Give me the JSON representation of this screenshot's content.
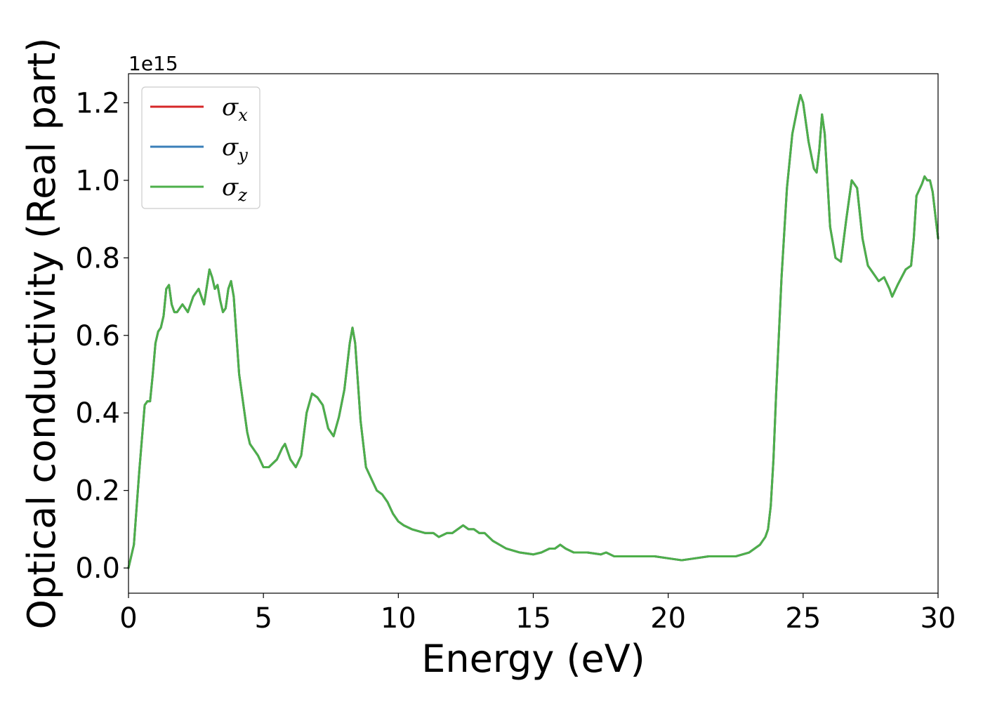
{
  "chart_data": {
    "type": "line",
    "title": "",
    "xlabel": "Energy (eV)",
    "ylabel": "Optical conductivity (Real part)",
    "y_offset_label": "1e15",
    "xlim": [
      0,
      30
    ],
    "ylim": [
      -0.065,
      1.275
    ],
    "x_ticks": [
      0,
      5,
      10,
      15,
      20,
      25,
      30
    ],
    "x_tick_labels": [
      "0",
      "5",
      "10",
      "15",
      "20",
      "25",
      "30"
    ],
    "y_ticks": [
      0.0,
      0.2,
      0.4,
      0.6,
      0.8,
      1.0,
      1.2
    ],
    "y_tick_labels": [
      "0.0",
      "0.2",
      "0.4",
      "0.6",
      "0.8",
      "1.0",
      "1.2"
    ],
    "grid": false,
    "legend_position": "top-left",
    "x": [
      0,
      0.2,
      0.4,
      0.6,
      0.7,
      0.8,
      0.9,
      1.0,
      1.1,
      1.2,
      1.3,
      1.4,
      1.5,
      1.6,
      1.7,
      1.8,
      2.0,
      2.2,
      2.4,
      2.6,
      2.8,
      3.0,
      3.1,
      3.2,
      3.3,
      3.4,
      3.5,
      3.6,
      3.7,
      3.8,
      3.9,
      4.0,
      4.1,
      4.2,
      4.3,
      4.4,
      4.5,
      4.6,
      4.7,
      4.8,
      5.0,
      5.2,
      5.5,
      5.7,
      5.8,
      6.0,
      6.2,
      6.4,
      6.6,
      6.8,
      7.0,
      7.2,
      7.4,
      7.6,
      7.8,
      8.0,
      8.2,
      8.3,
      8.4,
      8.5,
      8.6,
      8.8,
      9.0,
      9.2,
      9.4,
      9.6,
      9.8,
      10.0,
      10.2,
      10.5,
      11.0,
      11.3,
      11.5,
      11.8,
      12.0,
      12.2,
      12.4,
      12.6,
      12.8,
      13.0,
      13.2,
      13.5,
      14.0,
      14.5,
      15.0,
      15.3,
      15.6,
      15.8,
      16.0,
      16.2,
      16.5,
      17.0,
      17.5,
      17.7,
      18.0,
      18.5,
      19.0,
      19.5,
      20.0,
      20.5,
      21.0,
      21.5,
      22.0,
      22.5,
      23.0,
      23.2,
      23.4,
      23.5,
      23.6,
      23.7,
      23.8,
      23.9,
      24.0,
      24.2,
      24.4,
      24.6,
      24.8,
      24.9,
      25.0,
      25.2,
      25.4,
      25.5,
      25.6,
      25.7,
      25.8,
      25.9,
      26.0,
      26.2,
      26.4,
      26.6,
      26.8,
      27.0,
      27.2,
      27.4,
      27.6,
      27.8,
      28.0,
      28.2,
      28.3,
      28.5,
      28.8,
      29.0,
      29.1,
      29.2,
      29.4,
      29.5,
      29.6,
      29.7,
      29.8,
      30.0
    ],
    "series": [
      {
        "name": "σ",
        "sub": "x",
        "color": "#d62728",
        "values": [
          0.0,
          0.06,
          0.25,
          0.42,
          0.43,
          0.43,
          0.5,
          0.58,
          0.61,
          0.62,
          0.65,
          0.72,
          0.73,
          0.68,
          0.66,
          0.66,
          0.68,
          0.66,
          0.7,
          0.72,
          0.68,
          0.77,
          0.75,
          0.72,
          0.73,
          0.69,
          0.66,
          0.67,
          0.72,
          0.74,
          0.7,
          0.6,
          0.5,
          0.45,
          0.4,
          0.35,
          0.32,
          0.31,
          0.3,
          0.29,
          0.26,
          0.26,
          0.28,
          0.31,
          0.32,
          0.28,
          0.26,
          0.29,
          0.4,
          0.45,
          0.44,
          0.42,
          0.36,
          0.34,
          0.39,
          0.46,
          0.58,
          0.62,
          0.58,
          0.48,
          0.38,
          0.26,
          0.23,
          0.2,
          0.19,
          0.17,
          0.14,
          0.12,
          0.11,
          0.1,
          0.09,
          0.09,
          0.08,
          0.09,
          0.09,
          0.1,
          0.11,
          0.1,
          0.1,
          0.09,
          0.09,
          0.07,
          0.05,
          0.04,
          0.035,
          0.04,
          0.05,
          0.05,
          0.06,
          0.05,
          0.04,
          0.04,
          0.035,
          0.04,
          0.03,
          0.03,
          0.03,
          0.03,
          0.025,
          0.02,
          0.025,
          0.03,
          0.03,
          0.03,
          0.04,
          0.05,
          0.06,
          0.07,
          0.08,
          0.1,
          0.16,
          0.28,
          0.45,
          0.75,
          0.98,
          1.12,
          1.19,
          1.22,
          1.2,
          1.1,
          1.03,
          1.02,
          1.08,
          1.17,
          1.12,
          1.0,
          0.88,
          0.8,
          0.79,
          0.9,
          1.0,
          0.98,
          0.85,
          0.78,
          0.76,
          0.74,
          0.75,
          0.72,
          0.7,
          0.73,
          0.77,
          0.78,
          0.85,
          0.96,
          0.99,
          1.01,
          1.0,
          1.0,
          0.97,
          0.85
        ]
      },
      {
        "name": "σ",
        "sub": "y",
        "color": "#3a7fb8",
        "values": [
          0.0,
          0.06,
          0.25,
          0.42,
          0.43,
          0.43,
          0.5,
          0.58,
          0.61,
          0.62,
          0.65,
          0.72,
          0.73,
          0.68,
          0.66,
          0.66,
          0.68,
          0.66,
          0.7,
          0.72,
          0.68,
          0.77,
          0.75,
          0.72,
          0.73,
          0.69,
          0.66,
          0.67,
          0.72,
          0.74,
          0.7,
          0.6,
          0.5,
          0.45,
          0.4,
          0.35,
          0.32,
          0.31,
          0.3,
          0.29,
          0.26,
          0.26,
          0.28,
          0.31,
          0.32,
          0.28,
          0.26,
          0.29,
          0.4,
          0.45,
          0.44,
          0.42,
          0.36,
          0.34,
          0.39,
          0.46,
          0.58,
          0.62,
          0.58,
          0.48,
          0.38,
          0.26,
          0.23,
          0.2,
          0.19,
          0.17,
          0.14,
          0.12,
          0.11,
          0.1,
          0.09,
          0.09,
          0.08,
          0.09,
          0.09,
          0.1,
          0.11,
          0.1,
          0.1,
          0.09,
          0.09,
          0.07,
          0.05,
          0.04,
          0.035,
          0.04,
          0.05,
          0.05,
          0.06,
          0.05,
          0.04,
          0.04,
          0.035,
          0.04,
          0.03,
          0.03,
          0.03,
          0.03,
          0.025,
          0.02,
          0.025,
          0.03,
          0.03,
          0.03,
          0.04,
          0.05,
          0.06,
          0.07,
          0.08,
          0.1,
          0.16,
          0.28,
          0.45,
          0.75,
          0.98,
          1.12,
          1.19,
          1.22,
          1.2,
          1.1,
          1.03,
          1.02,
          1.08,
          1.17,
          1.12,
          1.0,
          0.88,
          0.8,
          0.79,
          0.9,
          1.0,
          0.98,
          0.85,
          0.78,
          0.76,
          0.74,
          0.75,
          0.72,
          0.7,
          0.73,
          0.77,
          0.78,
          0.85,
          0.96,
          0.99,
          1.01,
          1.0,
          1.0,
          0.97,
          0.85
        ]
      },
      {
        "name": "σ",
        "sub": "z",
        "color": "#4daf4a",
        "values": [
          0.0,
          0.06,
          0.25,
          0.42,
          0.43,
          0.43,
          0.5,
          0.58,
          0.61,
          0.62,
          0.65,
          0.72,
          0.73,
          0.68,
          0.66,
          0.66,
          0.68,
          0.66,
          0.7,
          0.72,
          0.68,
          0.77,
          0.75,
          0.72,
          0.73,
          0.69,
          0.66,
          0.67,
          0.72,
          0.74,
          0.7,
          0.6,
          0.5,
          0.45,
          0.4,
          0.35,
          0.32,
          0.31,
          0.3,
          0.29,
          0.26,
          0.26,
          0.28,
          0.31,
          0.32,
          0.28,
          0.26,
          0.29,
          0.4,
          0.45,
          0.44,
          0.42,
          0.36,
          0.34,
          0.39,
          0.46,
          0.58,
          0.62,
          0.58,
          0.48,
          0.38,
          0.26,
          0.23,
          0.2,
          0.19,
          0.17,
          0.14,
          0.12,
          0.11,
          0.1,
          0.09,
          0.09,
          0.08,
          0.09,
          0.09,
          0.1,
          0.11,
          0.1,
          0.1,
          0.09,
          0.09,
          0.07,
          0.05,
          0.04,
          0.035,
          0.04,
          0.05,
          0.05,
          0.06,
          0.05,
          0.04,
          0.04,
          0.035,
          0.04,
          0.03,
          0.03,
          0.03,
          0.03,
          0.025,
          0.02,
          0.025,
          0.03,
          0.03,
          0.03,
          0.04,
          0.05,
          0.06,
          0.07,
          0.08,
          0.1,
          0.16,
          0.28,
          0.45,
          0.75,
          0.98,
          1.12,
          1.19,
          1.22,
          1.2,
          1.1,
          1.03,
          1.02,
          1.08,
          1.17,
          1.12,
          1.0,
          0.88,
          0.8,
          0.79,
          0.9,
          1.0,
          0.98,
          0.85,
          0.78,
          0.76,
          0.74,
          0.75,
          0.72,
          0.7,
          0.73,
          0.77,
          0.78,
          0.85,
          0.96,
          0.99,
          1.01,
          1.0,
          1.0,
          0.97,
          0.85
        ]
      }
    ]
  }
}
